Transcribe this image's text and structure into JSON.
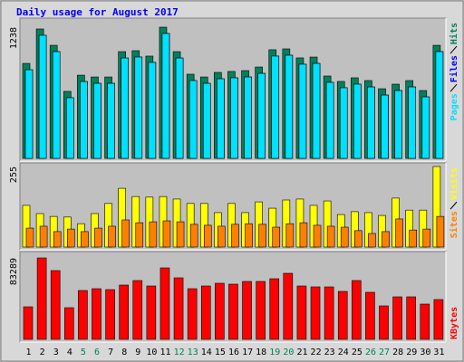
{
  "chart_data": [
    {
      "type": "bar",
      "title": "Daily usage for August 2017",
      "categories": [
        "1",
        "2",
        "3",
        "4",
        "5",
        "6",
        "7",
        "8",
        "9",
        "10",
        "11",
        "12",
        "13",
        "14",
        "15",
        "16",
        "17",
        "18",
        "19",
        "20",
        "21",
        "22",
        "23",
        "24",
        "25",
        "26",
        "27",
        "28",
        "29",
        "30",
        "31"
      ],
      "category_colors": [
        "#000000",
        "#000000",
        "#000000",
        "#000000",
        "#00805c",
        "#00805c",
        "#000000",
        "#000000",
        "#000000",
        "#000000",
        "#000000",
        "#00805c",
        "#00805c",
        "#000000",
        "#000000",
        "#000000",
        "#000000",
        "#000000",
        "#00805c",
        "#00805c",
        "#000000",
        "#000000",
        "#000000",
        "#000000",
        "#000000",
        "#00805c",
        "#00805c",
        "#000000",
        "#000000",
        "#000000",
        "#000000"
      ],
      "ylim": [
        0,
        1238
      ],
      "yticks": [
        1238
      ],
      "series": [
        {
          "name": "Hits",
          "color": "#00805c",
          "values": [
            896,
            1221,
            1067,
            632,
            785,
            768,
            768,
            1007,
            1016,
            965,
            1238,
            1007,
            794,
            768,
            811,
            820,
            828,
            862,
            1025,
            1033,
            948,
            956,
            777,
            726,
            760,
            734,
            657,
            700,
            734,
            640,
            1067
          ]
        },
        {
          "name": "Files",
          "color": "#0000ff",
          "values": [
            836,
            1161,
            1007,
            572,
            725,
            708,
            708,
            947,
            956,
            905,
            1178,
            947,
            734,
            708,
            751,
            760,
            768,
            802,
            965,
            973,
            888,
            896,
            717,
            666,
            700,
            674,
            597,
            640,
            674,
            580,
            1007
          ]
        },
        {
          "name": "Pages",
          "color": "#00e0ff",
          "values": [
            836,
            1161,
            1007,
            572,
            725,
            708,
            708,
            947,
            956,
            905,
            1178,
            947,
            734,
            708,
            751,
            760,
            768,
            802,
            965,
            973,
            888,
            896,
            717,
            666,
            700,
            674,
            597,
            640,
            674,
            580,
            1007
          ]
        }
      ]
    },
    {
      "type": "bar",
      "ylim": [
        0,
        255
      ],
      "yticks": [
        255
      ],
      "series": [
        {
          "name": "Visits",
          "color": "#ffff00",
          "values": [
            132,
            106,
            97,
            95,
            74,
            106,
            138,
            186,
            160,
            158,
            160,
            152,
            138,
            138,
            109,
            138,
            109,
            143,
            123,
            149,
            152,
            132,
            146,
            103,
            112,
            109,
            100,
            155,
            117,
            117,
            255
          ]
        },
        {
          "name": "Sites",
          "color": "#ff8000",
          "values": [
            60,
            66,
            49,
            57,
            49,
            60,
            66,
            86,
            77,
            80,
            83,
            80,
            72,
            69,
            66,
            72,
            74,
            72,
            63,
            74,
            77,
            69,
            66,
            63,
            52,
            43,
            49,
            89,
            54,
            57,
            97
          ]
        }
      ]
    },
    {
      "type": "bar",
      "ylim": [
        0,
        83289
      ],
      "yticks": [
        83289
      ],
      "series": [
        {
          "name": "KBytes",
          "color": "#ff0000",
          "values": [
            33316,
            83289,
            70333,
            32390,
            49973,
            51824,
            50899,
            55526,
            60153,
            54600,
            73109,
            62929,
            51824,
            54600,
            57376,
            56451,
            59227,
            59227,
            62004,
            67557,
            54600,
            53675,
            53675,
            49047,
            60153,
            48122,
            34240,
            43495,
            43495,
            36092,
            40719
          ]
        }
      ]
    }
  ]
}
